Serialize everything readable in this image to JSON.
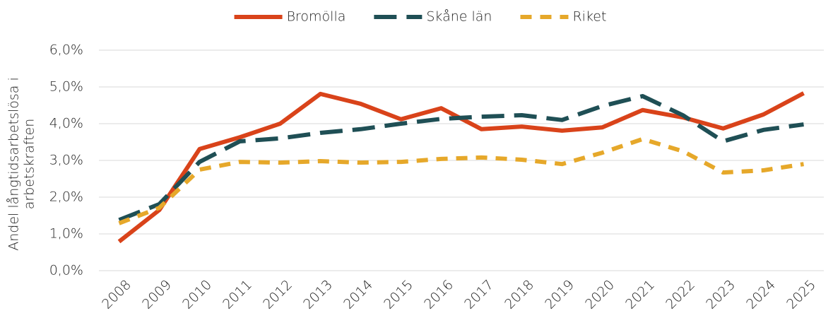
{
  "chart_data": {
    "type": "line",
    "ylabel": [
      "Andel långtidsarbetslösa i",
      "arbetskraften"
    ],
    "categories": [
      "2008",
      "2009",
      "2010",
      "2011",
      "2012",
      "2013",
      "2014",
      "2015",
      "2016",
      "2017",
      "2018",
      "2019",
      "2020",
      "2021",
      "2022",
      "2023",
      "2024",
      "2025"
    ],
    "series": [
      {
        "name": "Bromölla",
        "color": "#d9431a",
        "line_style": "solid",
        "values": [
          0.79,
          1.65,
          3.31,
          3.63,
          4.0,
          4.81,
          4.54,
          4.12,
          4.42,
          3.85,
          3.92,
          3.81,
          3.9,
          4.37,
          4.17,
          3.87,
          4.25,
          4.83
        ]
      },
      {
        "name": "Skåne län",
        "color": "#1f4f55",
        "line_style": "long-dash",
        "values": [
          1.38,
          1.81,
          2.96,
          3.52,
          3.6,
          3.75,
          3.85,
          4.0,
          4.13,
          4.19,
          4.23,
          4.1,
          4.48,
          4.75,
          4.23,
          3.52,
          3.83,
          3.98
        ]
      },
      {
        "name": "Riket",
        "color": "#e6a82a",
        "line_style": "short-dash",
        "values": [
          1.29,
          1.71,
          2.75,
          2.96,
          2.94,
          2.98,
          2.94,
          2.96,
          3.04,
          3.08,
          3.02,
          2.9,
          3.21,
          3.58,
          3.25,
          2.67,
          2.73,
          2.9
        ]
      }
    ],
    "ylim": [
      0,
      6
    ],
    "yticks": [
      {
        "value": 0,
        "label": "0,0%"
      },
      {
        "value": 1,
        "label": "1,0%"
      },
      {
        "value": 2,
        "label": "2,0%"
      },
      {
        "value": 3,
        "label": "3,0%"
      },
      {
        "value": 4,
        "label": "4,0%"
      },
      {
        "value": 5,
        "label": "5,0%"
      },
      {
        "value": 6,
        "label": "6,0%"
      }
    ],
    "grid": true,
    "legend": "top"
  }
}
